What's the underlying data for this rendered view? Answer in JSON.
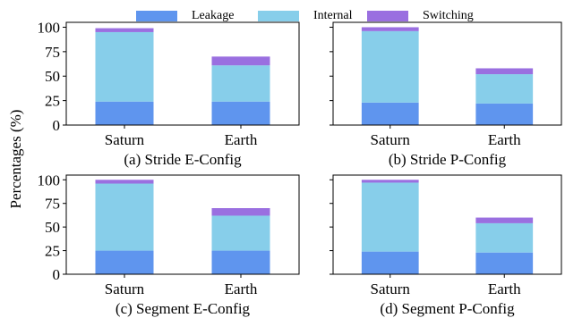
{
  "legend": {
    "items": [
      {
        "label": "Leakage",
        "color": "#5f95ee"
      },
      {
        "label": "Internal",
        "color": "#87ceea"
      },
      {
        "label": "Switching",
        "color": "#9a6fe0"
      }
    ]
  },
  "ylabel": "Percentages (%)",
  "chart_data": [
    {
      "type": "bar",
      "stacked": true,
      "title": "(a) Stride E-Config",
      "categories": [
        "Saturn",
        "Earth"
      ],
      "series": [
        {
          "name": "Leakage",
          "values": [
            24,
            24
          ]
        },
        {
          "name": "Internal",
          "values": [
            71,
            37
          ]
        },
        {
          "name": "Switching",
          "values": [
            4,
            9
          ]
        }
      ],
      "ylim": [
        0,
        105
      ],
      "yticks": [
        0,
        25,
        50,
        75,
        100
      ]
    },
    {
      "type": "bar",
      "stacked": true,
      "title": "(b) Stride P-Config",
      "categories": [
        "Saturn",
        "Earth"
      ],
      "series": [
        {
          "name": "Leakage",
          "values": [
            23,
            22
          ]
        },
        {
          "name": "Internal",
          "values": [
            73,
            30
          ]
        },
        {
          "name": "Switching",
          "values": [
            4,
            6
          ]
        }
      ],
      "ylim": [
        0,
        105
      ],
      "yticks": [
        0,
        25,
        50,
        75,
        100
      ]
    },
    {
      "type": "bar",
      "stacked": true,
      "title": "(c) Segment E-Config",
      "categories": [
        "Saturn",
        "Earth"
      ],
      "series": [
        {
          "name": "Leakage",
          "values": [
            25,
            25
          ]
        },
        {
          "name": "Internal",
          "values": [
            71,
            37
          ]
        },
        {
          "name": "Switching",
          "values": [
            4,
            8
          ]
        }
      ],
      "ylim": [
        0,
        105
      ],
      "yticks": [
        0,
        25,
        50,
        75,
        100
      ]
    },
    {
      "type": "bar",
      "stacked": true,
      "title": "(d) Segment P-Config",
      "categories": [
        "Saturn",
        "Earth"
      ],
      "series": [
        {
          "name": "Leakage",
          "values": [
            24,
            23
          ]
        },
        {
          "name": "Internal",
          "values": [
            73,
            31
          ]
        },
        {
          "name": "Switching",
          "values": [
            3,
            6
          ]
        }
      ],
      "ylim": [
        0,
        105
      ],
      "yticks": [
        0,
        25,
        50,
        75,
        100
      ]
    }
  ]
}
